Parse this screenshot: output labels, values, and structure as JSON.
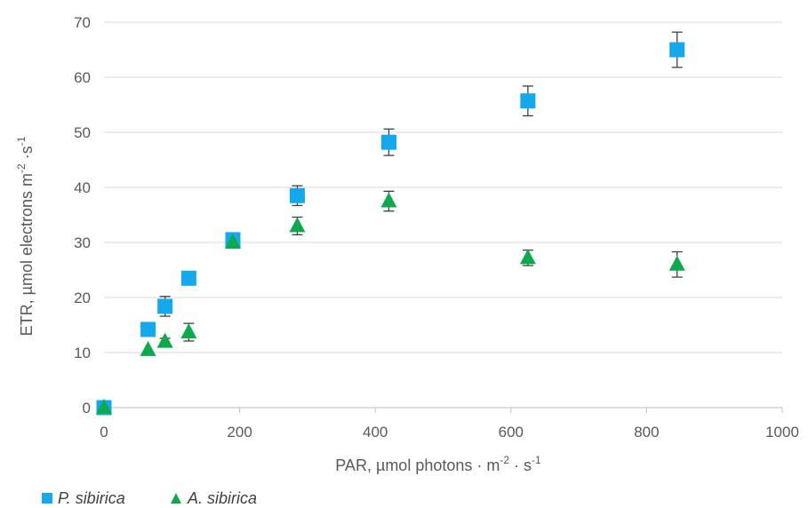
{
  "chart_data": {
    "type": "scatter",
    "title": "",
    "xlabel_main": "PAR, µmol photons · m",
    "xlabel_exp1": "-2",
    "xlabel_mid": " · s",
    "xlabel_exp2": "-1",
    "ylabel_main": "ETR, µmol electrons m",
    "ylabel_exp1": "-2",
    "ylabel_mid": " ·s",
    "ylabel_exp2": "-1",
    "xlim": [
      0,
      1000
    ],
    "ylim": [
      0,
      70
    ],
    "x_ticks": [
      0,
      200,
      400,
      600,
      800,
      1000
    ],
    "y_ticks": [
      0,
      10,
      20,
      30,
      40,
      50,
      60,
      70
    ],
    "grid": "horizontal",
    "legend_position": "bottom-left",
    "series": [
      {
        "name": "P. sibirica",
        "marker": "square",
        "color": "#12a9ef",
        "points": [
          {
            "x": 0,
            "y": 0,
            "err": 0
          },
          {
            "x": 65,
            "y": 14.2,
            "err": 0
          },
          {
            "x": 90,
            "y": 18.4,
            "err": 1.8
          },
          {
            "x": 125,
            "y": 23.5,
            "err": 0
          },
          {
            "x": 190,
            "y": 30.5,
            "err": 0.8
          },
          {
            "x": 285,
            "y": 38.5,
            "err": 1.8
          },
          {
            "x": 420,
            "y": 48.2,
            "err": 2.4
          },
          {
            "x": 625,
            "y": 55.7,
            "err": 2.7
          },
          {
            "x": 845,
            "y": 65.0,
            "err": 3.2
          }
        ]
      },
      {
        "name": "A. sibirica",
        "marker": "triangle",
        "color": "#0caa4f",
        "points": [
          {
            "x": 0,
            "y": 0,
            "err": 0
          },
          {
            "x": 65,
            "y": 10.5,
            "err": 0
          },
          {
            "x": 90,
            "y": 12.0,
            "err": 0.6
          },
          {
            "x": 125,
            "y": 13.7,
            "err": 1.6
          },
          {
            "x": 190,
            "y": 30.0,
            "err": 0.6
          },
          {
            "x": 285,
            "y": 33.0,
            "err": 1.6
          },
          {
            "x": 420,
            "y": 37.5,
            "err": 1.8
          },
          {
            "x": 625,
            "y": 27.2,
            "err": 1.4
          },
          {
            "x": 845,
            "y": 26.0,
            "err": 2.3
          }
        ]
      }
    ]
  },
  "colors": {
    "axis": "#bfbfbf",
    "grid": "#d9d9d9",
    "error_bar": "#404040"
  }
}
